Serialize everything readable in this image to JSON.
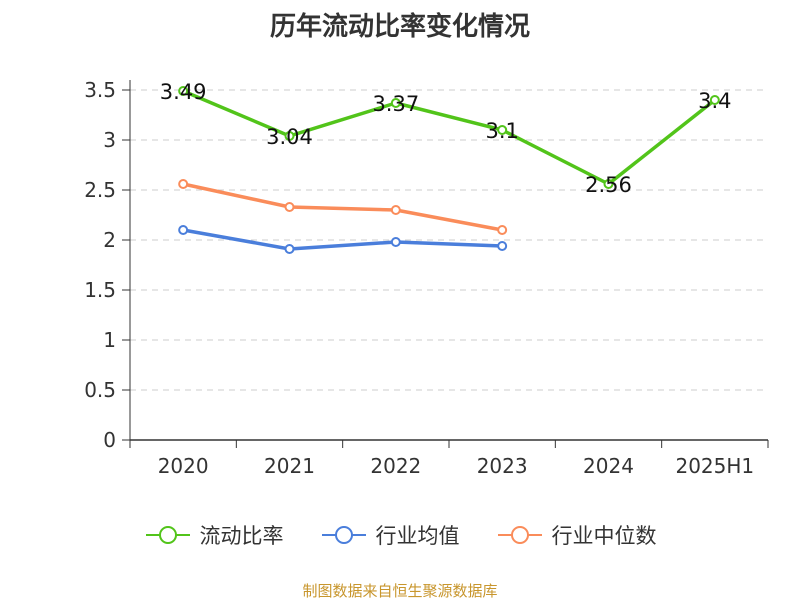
{
  "chart_data": {
    "type": "line",
    "title": "历年流动比率变化情况",
    "categories": [
      "2020",
      "2021",
      "2022",
      "2023",
      "2024",
      "2025H1"
    ],
    "yticks": [
      "0",
      "0.5",
      "1",
      "1.5",
      "2",
      "2.5",
      "3",
      "3.5"
    ],
    "ylim": [
      0,
      3.5
    ],
    "grid": "horizontal-dashed",
    "legend_position": "bottom",
    "series": [
      {
        "name": "流动比率",
        "color": "#52c41a",
        "data_labels": true,
        "values": [
          3.49,
          3.04,
          3.37,
          3.1,
          2.56,
          3.4
        ],
        "labels": [
          "3.49",
          "3.04",
          "3.37",
          "3.1",
          "2.56",
          "3.4"
        ]
      },
      {
        "name": "行业均值",
        "color": "#4a7edb",
        "data_labels": false,
        "values": [
          2.1,
          1.91,
          1.98,
          1.94,
          null,
          null
        ]
      },
      {
        "name": "行业中位数",
        "color": "#fa8c5a",
        "data_labels": false,
        "values": [
          2.56,
          2.33,
          2.3,
          2.1,
          null,
          null
        ]
      }
    ]
  },
  "source": {
    "text": "制图数据来自恒生聚源数据库",
    "color": "#c8962d"
  }
}
